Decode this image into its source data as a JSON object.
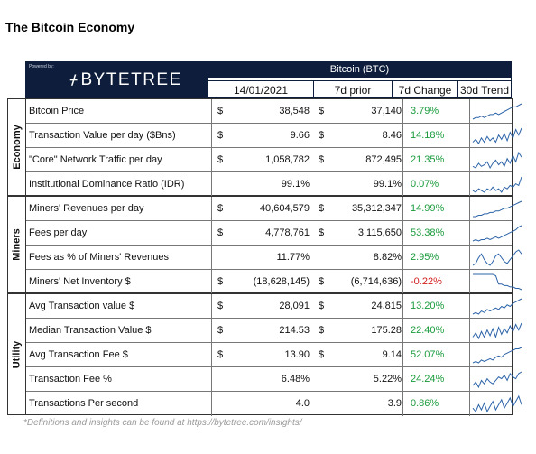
{
  "page_title": "The Bitcoin Economy",
  "header": {
    "powered_by": "Powered by:",
    "brand": "BYTETREE",
    "asset": "Bitcoin (BTC)",
    "columns": [
      "14/01/2021",
      "7d prior",
      "7d Change",
      "30d Trend"
    ]
  },
  "groups": [
    {
      "label": "Economy",
      "rows": [
        {
          "metric": "Bitcoin Price",
          "cur_dollar": "$",
          "cur": "38,548",
          "prev_dollar": "$",
          "prev": "37,140",
          "change": "3.79%",
          "dir": "pos",
          "trend": [
            3,
            4,
            4,
            5,
            4,
            5,
            6,
            6,
            7,
            6,
            7,
            8,
            9,
            10,
            11,
            11,
            12,
            13
          ]
        },
        {
          "metric": "Transaction Value per day ($Bns)",
          "cur_dollar": "$",
          "cur": "9.66",
          "prev_dollar": "$",
          "prev": "8.46",
          "change": "14.18%",
          "dir": "pos",
          "trend": [
            3,
            5,
            2,
            6,
            3,
            7,
            4,
            6,
            3,
            8,
            5,
            9,
            4,
            10,
            6,
            12,
            8,
            13
          ]
        },
        {
          "metric": "\"Core\" Network Traffic per day",
          "cur_dollar": "$",
          "cur": "1,058,782",
          "prev_dollar": "$",
          "prev": "872,495",
          "change": "21.35%",
          "dir": "pos",
          "trend": [
            4,
            3,
            6,
            4,
            5,
            7,
            3,
            6,
            8,
            5,
            7,
            4,
            9,
            6,
            11,
            7,
            13,
            10
          ]
        },
        {
          "metric": "Institutional Dominance Ratio (IDR)",
          "cur_dollar": "",
          "cur": "99.1%",
          "prev_dollar": "",
          "prev": "99.1%",
          "change": "0.07%",
          "dir": "pos",
          "trend": [
            5,
            4,
            6,
            5,
            4,
            6,
            5,
            7,
            5,
            6,
            4,
            7,
            6,
            8,
            7,
            9,
            8,
            13
          ]
        }
      ]
    },
    {
      "label": "Miners",
      "rows": [
        {
          "metric": "Miners' Revenues per day",
          "cur_dollar": "$",
          "cur": "40,604,579",
          "prev_dollar": "$",
          "prev": "35,312,347",
          "change": "14.99%",
          "dir": "pos",
          "trend": [
            2,
            2,
            3,
            3,
            4,
            4,
            5,
            5,
            6,
            6,
            7,
            8,
            8,
            9,
            10,
            11,
            12,
            13
          ]
        },
        {
          "metric": "Fees per day",
          "cur_dollar": "$",
          "cur": "4,778,761",
          "prev_dollar": "$",
          "prev": "3,115,650",
          "change": "53.38%",
          "dir": "pos",
          "trend": [
            2,
            3,
            2,
            3,
            3,
            4,
            3,
            4,
            5,
            4,
            5,
            6,
            7,
            8,
            9,
            10,
            12,
            13
          ]
        },
        {
          "metric": "Fees as % of Miners' Revenues",
          "cur_dollar": "",
          "cur": "11.77%",
          "prev_dollar": "",
          "prev": "8.82%",
          "change": "2.95%",
          "dir": "pos",
          "trend": [
            4,
            5,
            8,
            10,
            7,
            5,
            4,
            6,
            9,
            10,
            8,
            6,
            5,
            7,
            9,
            11,
            12,
            10
          ]
        },
        {
          "metric": "Miners' Net Inventory $",
          "cur_dollar": "$",
          "cur": "(18,628,145)",
          "prev_dollar": "$",
          "prev": "(6,714,636)",
          "change": "-0.22%",
          "dir": "neg",
          "trend": [
            13,
            13,
            13,
            13,
            13,
            13,
            13,
            13,
            12,
            6,
            6,
            5,
            5,
            4,
            4,
            3,
            3,
            2
          ]
        }
      ]
    },
    {
      "label": "Utility",
      "rows": [
        {
          "metric": "Avg Transaction value $",
          "cur_dollar": "$",
          "cur": "28,091",
          "prev_dollar": "$",
          "prev": "24,815",
          "change": "13.20%",
          "dir": "pos",
          "trend": [
            3,
            4,
            3,
            5,
            4,
            6,
            5,
            6,
            7,
            6,
            8,
            7,
            9,
            8,
            10,
            11,
            12,
            13
          ]
        },
        {
          "metric": "Median Transaction Value $",
          "cur_dollar": "$",
          "cur": "214.53",
          "prev_dollar": "$",
          "prev": "175.28",
          "change": "22.40%",
          "dir": "pos",
          "trend": [
            3,
            6,
            2,
            7,
            3,
            8,
            4,
            9,
            3,
            10,
            5,
            9,
            6,
            11,
            7,
            12,
            8,
            13
          ]
        },
        {
          "metric": "Avg Transaction Fee $",
          "cur_dollar": "$",
          "cur": "13.90",
          "prev_dollar": "$",
          "prev": "9.14",
          "change": "52.07%",
          "dir": "pos",
          "trend": [
            2,
            3,
            2,
            4,
            3,
            4,
            5,
            4,
            6,
            7,
            6,
            8,
            9,
            10,
            11,
            12,
            12,
            13
          ]
        },
        {
          "metric": "Transaction Fee %",
          "cur_dollar": "",
          "cur": "6.48%",
          "prev_dollar": "",
          "prev": "5.22%",
          "change": "24.24%",
          "dir": "pos",
          "trend": [
            5,
            7,
            4,
            8,
            6,
            9,
            7,
            6,
            8,
            10,
            9,
            11,
            8,
            12,
            10,
            9,
            12,
            13
          ]
        },
        {
          "metric": "Transactions Per second",
          "cur_dollar": "",
          "cur": "4.0",
          "prev_dollar": "",
          "prev": "3.9",
          "change": "0.86%",
          "dir": "pos",
          "trend": [
            6,
            4,
            8,
            5,
            9,
            4,
            7,
            10,
            5,
            8,
            11,
            6,
            9,
            12,
            7,
            10,
            13,
            8
          ]
        }
      ]
    }
  ],
  "footnote": "*Definitions and insights can be found at https://bytetree.com/insights/",
  "colors": {
    "header_bg": "#0d1d3b",
    "positive": "#1a9b3c",
    "negative": "#d21c1c",
    "trend_line": "#2b63a8"
  }
}
